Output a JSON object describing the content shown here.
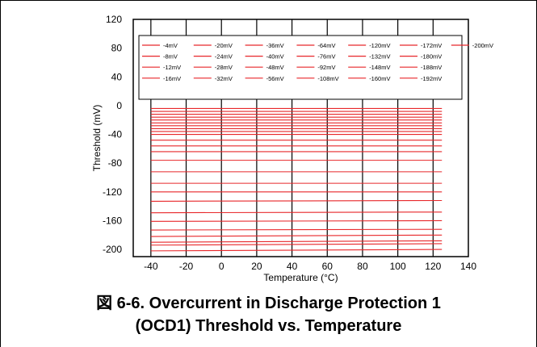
{
  "chart_data": {
    "type": "line",
    "xlabel": "Temperature (°C)",
    "ylabel": "Threshold (mV)",
    "xlim": [
      -50,
      140
    ],
    "ylim": [
      -210,
      120
    ],
    "xticks": [
      -40,
      -20,
      0,
      20,
      40,
      60,
      80,
      100,
      120,
      140
    ],
    "yticks": [
      -200,
      -160,
      -120,
      -80,
      -40,
      0,
      40,
      80,
      120
    ],
    "grid": "vertical",
    "legend_position": "top",
    "line_color": "#e8272a",
    "x": [
      -40,
      125
    ],
    "series": [
      {
        "name": "-4mV",
        "values": [
          -4,
          -4
        ]
      },
      {
        "name": "-8mV",
        "values": [
          -8,
          -8
        ]
      },
      {
        "name": "-12mV",
        "values": [
          -12,
          -12
        ]
      },
      {
        "name": "-16mV",
        "values": [
          -16,
          -16
        ]
      },
      {
        "name": "-20mV",
        "values": [
          -20,
          -20
        ]
      },
      {
        "name": "-24mV",
        "values": [
          -24,
          -24
        ]
      },
      {
        "name": "-28mV",
        "values": [
          -28,
          -28
        ]
      },
      {
        "name": "-32mV",
        "values": [
          -32,
          -32
        ]
      },
      {
        "name": "-36mV",
        "values": [
          -36,
          -36
        ]
      },
      {
        "name": "-40mV",
        "values": [
          -40,
          -40
        ]
      },
      {
        "name": "-48mV",
        "values": [
          -48,
          -48
        ]
      },
      {
        "name": "-56mV",
        "values": [
          -56,
          -56
        ]
      },
      {
        "name": "-64mV",
        "values": [
          -64,
          -64
        ]
      },
      {
        "name": "-76mV",
        "values": [
          -76,
          -76
        ]
      },
      {
        "name": "-92mV",
        "values": [
          -92,
          -92
        ]
      },
      {
        "name": "-108mV",
        "values": [
          -108,
          -108
        ]
      },
      {
        "name": "-120mV",
        "values": [
          -120,
          -120
        ]
      },
      {
        "name": "-132mV",
        "values": [
          -133,
          -132
        ]
      },
      {
        "name": "-148mV",
        "values": [
          -149,
          -148
        ]
      },
      {
        "name": "-160mV",
        "values": [
          -161,
          -160
        ]
      },
      {
        "name": "-172mV",
        "values": [
          -173,
          -172
        ]
      },
      {
        "name": "-180mV",
        "values": [
          -182,
          -180
        ]
      },
      {
        "name": "-188mV",
        "values": [
          -190,
          -188
        ]
      },
      {
        "name": "-192mV",
        "values": [
          -194,
          -192
        ]
      },
      {
        "name": "-200mV",
        "values": [
          -202,
          -200
        ]
      }
    ]
  },
  "caption": {
    "line1": "図 6-6. Overcurrent in Discharge Protection 1",
    "line2": "(OCD1) Threshold vs. Temperature"
  }
}
